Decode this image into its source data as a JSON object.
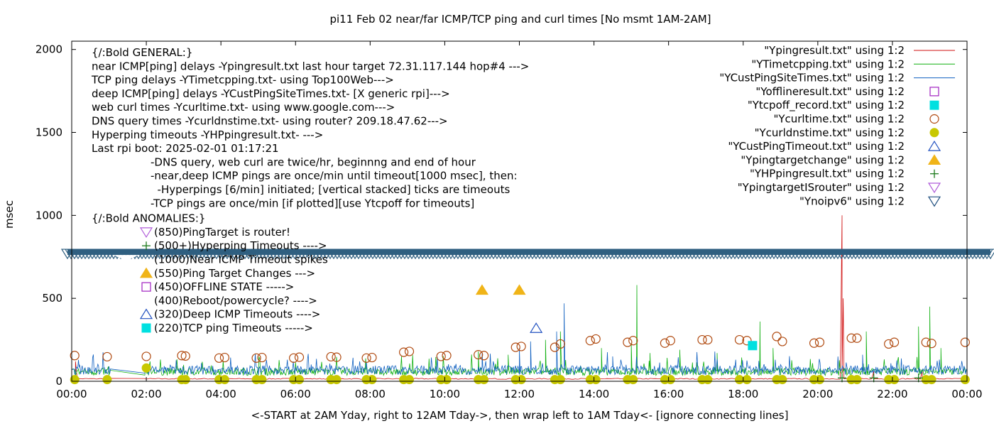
{
  "chart_data": {
    "type": "line",
    "title": "pi11 Feb 02  near/far ICMP/TCP ping and curl times [No msmt 1AM-2AM]",
    "xlabel": "<-START at 2AM Yday, right to 12AM Tday->, then wrap left to 1AM Tday<- [ignore connecting lines]",
    "ylabel": "msec",
    "xlim": [
      0,
      24
    ],
    "ylim": [
      0,
      2050
    ],
    "x_ticks": [
      "00:00",
      "02:00",
      "04:00",
      "06:00",
      "08:00",
      "10:00",
      "12:00",
      "14:00",
      "16:00",
      "18:00",
      "20:00",
      "22:00",
      "00:00"
    ],
    "y_ticks": [
      0,
      500,
      1000,
      1500,
      2000
    ],
    "annotations": [
      "{/:Bold GENERAL:}",
      "near ICMP[ping] delays -Ypingresult.txt last hour target 72.31.117.144 hop#4 --->",
      "TCP ping delays -YTimetcpping.txt- using Top100Web--->",
      "deep ICMP[ping] delays -YCustPingSiteTimes.txt- [X generic rpi]--->",
      "web curl times -Ycurltime.txt- using www.google.com--->",
      "DNS query times -Ycurldnstime.txt- using router? 209.18.47.62--->",
      "Hyperping timeouts -YHPpingresult.txt- --->",
      "Last rpi boot: 2025-02-01 01:17:21"
    ],
    "notes": [
      "-DNS query, web curl are twice/hr, beginnng and end of hour",
      "-near,deep ICMP pings are once/min until timeout[1000 msec], then:",
      "  -Hyperpings [6/min] initiated; [vertical stacked] ticks are timeouts",
      "-TCP pings are once/min [if plotted][use Ytcpoff for timeouts]"
    ],
    "anomalies_title": "{/:Bold ANOMALIES:}",
    "anomalies": [
      {
        "label": "(850)PingTarget is router!",
        "marker": "tri-down-open",
        "color": "#b05cd9"
      },
      {
        "label": "(500+)Hyperping Timeouts ---->",
        "marker": "plus",
        "color": "#1a7a1a"
      },
      {
        "label": "(1000)Near ICMP Timeout spikes",
        "marker": "none",
        "color": "#000000"
      },
      {
        "label": "(550)Ping Target Changes --->",
        "marker": "tri-up-filled",
        "color": "#f0b418"
      },
      {
        "label": "(450)OFFLINE STATE ----->",
        "marker": "square-open",
        "color": "#a020c0"
      },
      {
        "label": "(400)Reboot/powercycle? ---->",
        "marker": "none",
        "color": "#000000"
      },
      {
        "label": "(320)Deep ICMP Timeouts ---->",
        "marker": "tri-up-open",
        "color": "#2050c0"
      },
      {
        "label": "(220)TCP ping Timeouts ----->",
        "marker": "square-filled",
        "color": "#00e0e0"
      }
    ],
    "legend_placement": "top-right",
    "legend": [
      {
        "name": "\"Ypingresult.txt\" using 1:2",
        "style": "line",
        "color": "#d01010"
      },
      {
        "name": "\"YTimetcpping.txt\" using 1:2",
        "style": "line",
        "color": "#10b010"
      },
      {
        "name": "\"YCustPingSiteTimes.txt\" using 1:2",
        "style": "line",
        "color": "#1060c0"
      },
      {
        "name": "\"Yofflineresult.txt\" using 1:2",
        "style": "square-open",
        "color": "#a020c0"
      },
      {
        "name": "\"Ytcpoff_record.txt\" using 1:2",
        "style": "square-filled",
        "color": "#00e0e0"
      },
      {
        "name": "\"Ycurltime.txt\" using 1:2",
        "style": "circle-open",
        "color": "#b04a10"
      },
      {
        "name": "\"Ycurldnstime.txt\" using 1:2",
        "style": "circle-filled",
        "color": "#c8c800"
      },
      {
        "name": "\"YCustPingTimeout.txt\" using 1:2",
        "style": "tri-up-open",
        "color": "#2050c0"
      },
      {
        "name": "\"Ypingtargetchange\" using 1:2",
        "style": "tri-up-filled",
        "color": "#f0b418"
      },
      {
        "name": "\"YHPpingresult.txt\" using 1:2",
        "style": "plus",
        "color": "#1a7a1a"
      },
      {
        "name": "\"YpingtargetISrouter\" using 1:2",
        "style": "tri-down-open",
        "color": "#b05cd9"
      },
      {
        "name": "\"Ynoipv6\" using 1:2",
        "style": "tri-down-open",
        "color": "#205080"
      }
    ],
    "noipv6_band": {
      "y_value": 770,
      "color": "#2f5f80"
    },
    "series": [
      {
        "name": "Ypingresult.txt",
        "color": "#d01010",
        "spikes": [
          [
            0.1,
            120
          ],
          [
            20.65,
            1000
          ],
          [
            20.68,
            500
          ],
          [
            20.7,
            90
          ],
          [
            21.5,
            60
          ],
          [
            22.8,
            70
          ]
        ]
      },
      {
        "name": "YTimetcpping.txt",
        "color": "#10b010",
        "spikes": [
          [
            10.9,
            180
          ],
          [
            11.7,
            160
          ],
          [
            12.7,
            250
          ],
          [
            13.1,
            300
          ],
          [
            14.2,
            200
          ],
          [
            15.0,
            230
          ],
          [
            15.15,
            580
          ],
          [
            15.5,
            170
          ],
          [
            16.3,
            190
          ],
          [
            17.3,
            170
          ],
          [
            18.45,
            360
          ],
          [
            18.8,
            200
          ],
          [
            21.3,
            300
          ],
          [
            22.7,
            330
          ],
          [
            23.0,
            450
          ],
          [
            23.3,
            200
          ]
        ]
      },
      {
        "name": "YCustPingSiteTimes.txt",
        "color": "#1060c0",
        "spikes": [
          [
            0.2,
            100
          ],
          [
            11.0,
            180
          ],
          [
            12.0,
            200
          ],
          [
            12.3,
            240
          ],
          [
            13.2,
            470
          ],
          [
            13.0,
            300
          ],
          [
            14.5,
            150
          ],
          [
            19.0,
            100
          ],
          [
            21.2,
            160
          ],
          [
            22.3,
            100
          ]
        ]
      }
    ],
    "curltime_points": [
      [
        0.08,
        155
      ],
      [
        0.95,
        148
      ],
      [
        2.0,
        150
      ],
      [
        2.95,
        155
      ],
      [
        3.05,
        152
      ],
      [
        3.95,
        140
      ],
      [
        4.1,
        143
      ],
      [
        4.95,
        140
      ],
      [
        5.1,
        143
      ],
      [
        5.95,
        140
      ],
      [
        6.1,
        145
      ],
      [
        6.95,
        148
      ],
      [
        7.1,
        145
      ],
      [
        7.9,
        140
      ],
      [
        8.05,
        143
      ],
      [
        8.9,
        175
      ],
      [
        9.05,
        180
      ],
      [
        9.9,
        150
      ],
      [
        10.05,
        155
      ],
      [
        10.9,
        160
      ],
      [
        11.05,
        155
      ],
      [
        11.9,
        205
      ],
      [
        12.05,
        210
      ],
      [
        12.95,
        205
      ],
      [
        13.1,
        225
      ],
      [
        13.9,
        245
      ],
      [
        14.05,
        255
      ],
      [
        14.9,
        235
      ],
      [
        15.05,
        245
      ],
      [
        15.9,
        230
      ],
      [
        16.05,
        245
      ],
      [
        16.9,
        250
      ],
      [
        17.05,
        250
      ],
      [
        17.9,
        250
      ],
      [
        18.1,
        245
      ],
      [
        18.9,
        270
      ],
      [
        19.05,
        240
      ],
      [
        19.9,
        230
      ],
      [
        20.05,
        235
      ],
      [
        20.9,
        260
      ],
      [
        21.05,
        260
      ],
      [
        21.9,
        225
      ],
      [
        22.05,
        235
      ],
      [
        22.9,
        235
      ],
      [
        23.05,
        228
      ],
      [
        23.95,
        235
      ]
    ],
    "dnstime_points": [
      [
        0.08,
        10
      ],
      [
        0.95,
        10
      ],
      [
        2.0,
        80
      ],
      [
        2.95,
        10
      ],
      [
        3.05,
        10
      ],
      [
        3.95,
        10
      ],
      [
        4.1,
        10
      ],
      [
        4.95,
        10
      ],
      [
        5.1,
        10
      ],
      [
        5.95,
        10
      ],
      [
        6.1,
        10
      ],
      [
        6.95,
        10
      ],
      [
        7.1,
        10
      ],
      [
        7.9,
        10
      ],
      [
        8.05,
        10
      ],
      [
        8.9,
        10
      ],
      [
        9.05,
        10
      ],
      [
        9.9,
        10
      ],
      [
        10.05,
        10
      ],
      [
        10.9,
        10
      ],
      [
        11.05,
        10
      ],
      [
        11.9,
        10
      ],
      [
        12.05,
        10
      ],
      [
        12.95,
        10
      ],
      [
        13.1,
        10
      ],
      [
        13.9,
        10
      ],
      [
        14.05,
        10
      ],
      [
        14.9,
        10
      ],
      [
        15.05,
        10
      ],
      [
        15.9,
        10
      ],
      [
        16.05,
        10
      ],
      [
        16.9,
        10
      ],
      [
        17.05,
        10
      ],
      [
        17.9,
        10
      ],
      [
        18.1,
        10
      ],
      [
        18.9,
        10
      ],
      [
        19.05,
        10
      ],
      [
        19.9,
        10
      ],
      [
        20.05,
        10
      ],
      [
        20.9,
        10
      ],
      [
        21.05,
        10
      ],
      [
        21.9,
        10
      ],
      [
        22.05,
        10
      ],
      [
        22.9,
        10
      ],
      [
        23.05,
        10
      ],
      [
        23.95,
        10
      ]
    ],
    "pingtargetchange_points": [
      [
        11.0,
        550
      ],
      [
        12.0,
        550
      ]
    ],
    "custpingtimeout_points": [
      [
        12.45,
        320
      ]
    ],
    "tcpoff_points": [
      [
        18.25,
        215
      ]
    ],
    "hyperping_points": [
      [
        20.65,
        20
      ],
      [
        21.5,
        20
      ],
      [
        22.7,
        20
      ]
    ]
  }
}
